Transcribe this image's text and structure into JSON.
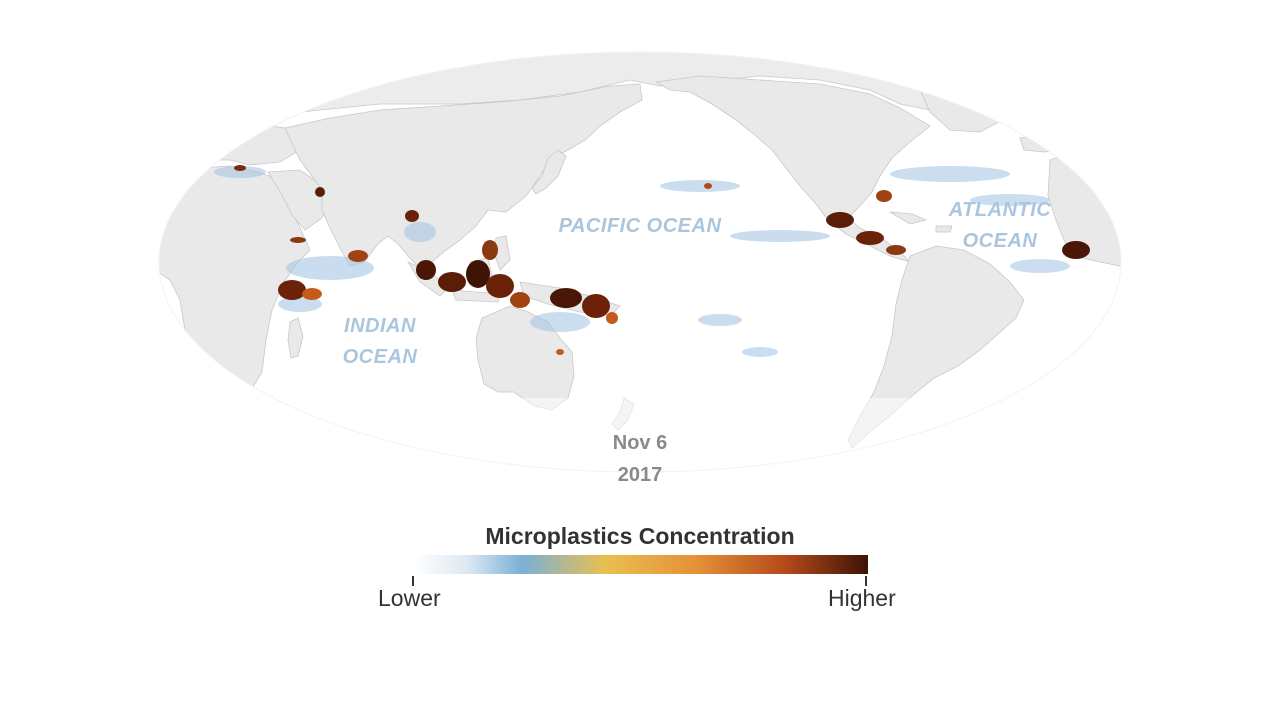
{
  "map": {
    "projection": "mollweide-pacific-centered",
    "ocean_labels": {
      "pacific": "PACIFIC OCEAN",
      "indian_line1": "INDIAN",
      "indian_line2": "OCEAN",
      "atlantic_line1": "ATLANTIC",
      "atlantic_line2": "OCEAN"
    },
    "date": {
      "day": "Nov 6",
      "year": "2017"
    },
    "colors": {
      "land": "#e9e9e9",
      "ocean": "#ffffff",
      "label": "#a9c6de",
      "coast": "#c6c6c6"
    }
  },
  "legend": {
    "title": "Microplastics Concentration",
    "low_label": "Lower",
    "high_label": "Higher",
    "colors": [
      "#ffffff",
      "#dde8f2",
      "#7ab0d6",
      "#e8bf52",
      "#e69238",
      "#b4491a",
      "#3d1406"
    ]
  }
}
